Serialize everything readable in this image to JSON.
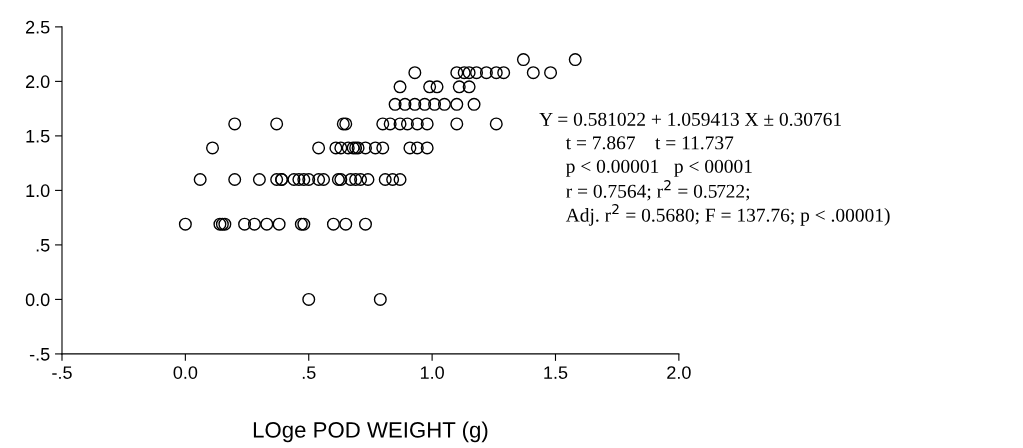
{
  "chart_data": {
    "type": "scatter",
    "xlabel": "LOge POD WEIGHT (g)",
    "marker": "circle",
    "grid": false,
    "legend": false,
    "xlim": [
      -0.5,
      2.0
    ],
    "ylim": [
      -0.5,
      2.5
    ],
    "xticks": [
      {
        "value": -0.5,
        "label": "-.5"
      },
      {
        "value": 0,
        "label": "0.0"
      },
      {
        "value": 0.5,
        "label": ".5"
      },
      {
        "value": 1.0,
        "label": "1.0"
      },
      {
        "value": 1.5,
        "label": "1.5"
      },
      {
        "value": 2.0,
        "label": "2.0"
      }
    ],
    "yticks": [
      {
        "value": -0.5,
        "label": "-.5"
      },
      {
        "value": 0,
        "label": "0.0"
      },
      {
        "value": 0.5,
        "label": ".5"
      },
      {
        "value": 1.0,
        "label": "1.0"
      },
      {
        "value": 1.5,
        "label": "1.5"
      },
      {
        "value": 2.0,
        "label": "2.0"
      },
      {
        "value": 2.5,
        "label": "2.5"
      }
    ],
    "series": [
      {
        "color": "#000000",
        "x": [
          0.0,
          0.14,
          0.15,
          0.16,
          0.24,
          0.28,
          0.33,
          0.38,
          0.47,
          0.48,
          0.6,
          0.65,
          0.73,
          0.06,
          0.2,
          0.3,
          0.37,
          0.39,
          0.39,
          0.44,
          0.46,
          0.48,
          0.5,
          0.54,
          0.56,
          0.62,
          0.63,
          0.67,
          0.69,
          0.71,
          0.74,
          0.81,
          0.84,
          0.87,
          0.11,
          0.54,
          0.61,
          0.63,
          0.66,
          0.68,
          0.69,
          0.7,
          0.73,
          0.77,
          0.8,
          0.91,
          0.94,
          0.98,
          0.2,
          0.37,
          0.65,
          0.64,
          0.8,
          0.83,
          0.87,
          0.9,
          0.94,
          0.98,
          1.1,
          1.26,
          0.85,
          0.89,
          0.93,
          0.97,
          1.01,
          1.05,
          1.1,
          1.17,
          0.87,
          0.99,
          1.02,
          1.11,
          1.15,
          0.93,
          1.1,
          1.13,
          1.15,
          1.18,
          1.22,
          1.26,
          1.29,
          1.41,
          1.48,
          1.37,
          1.58,
          0.5,
          0.79
        ],
        "values": [
          0.69,
          0.69,
          0.69,
          0.69,
          0.69,
          0.69,
          0.69,
          0.69,
          0.69,
          0.69,
          0.69,
          0.69,
          0.69,
          1.1,
          1.1,
          1.1,
          1.1,
          1.1,
          1.1,
          1.1,
          1.1,
          1.1,
          1.1,
          1.1,
          1.1,
          1.1,
          1.1,
          1.1,
          1.1,
          1.1,
          1.1,
          1.1,
          1.1,
          1.1,
          1.39,
          1.39,
          1.39,
          1.39,
          1.39,
          1.39,
          1.39,
          1.39,
          1.39,
          1.39,
          1.39,
          1.39,
          1.39,
          1.39,
          1.61,
          1.61,
          1.61,
          1.61,
          1.61,
          1.61,
          1.61,
          1.61,
          1.61,
          1.61,
          1.61,
          1.61,
          1.79,
          1.79,
          1.79,
          1.79,
          1.79,
          1.79,
          1.79,
          1.79,
          1.95,
          1.95,
          1.95,
          1.95,
          1.95,
          2.08,
          2.08,
          2.08,
          2.08,
          2.08,
          2.08,
          2.08,
          2.08,
          2.08,
          2.08,
          2.2,
          2.2,
          0.0,
          0.0
        ]
      }
    ],
    "annotations": [
      "Y = 0.581022 + 1.059413 X ± 0.30761",
      "t = 7.867    t = 11.737",
      "p < 0.00001   p < 00001",
      "r = 0.7564; r$^{2}$ = 0.5722;",
      "Adj. r$^{2}$ = 0.5680; F = 137.76; p < .00001)"
    ]
  }
}
